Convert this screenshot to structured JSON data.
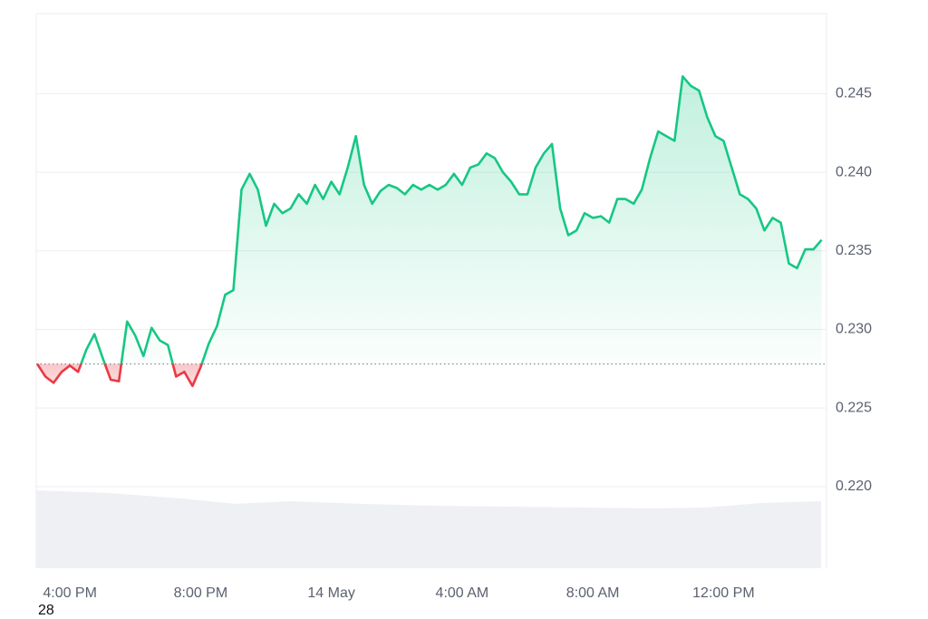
{
  "chart_data": {
    "type": "line",
    "x": [
      15,
      15.25,
      15.5,
      15.75,
      16,
      16.25,
      16.5,
      16.75,
      17,
      17.25,
      17.5,
      17.75,
      18,
      18.25,
      18.5,
      18.75,
      19,
      19.25,
      19.5,
      19.75,
      20,
      20.25,
      20.5,
      20.75,
      21,
      21.25,
      21.5,
      21.75,
      22,
      22.25,
      22.5,
      22.75,
      23,
      23.25,
      23.5,
      23.75,
      24,
      24.25,
      24.5,
      24.75,
      25,
      25.25,
      25.5,
      25.75,
      26,
      26.25,
      26.5,
      26.75,
      27,
      27.25,
      27.5,
      27.75,
      28,
      28.25,
      28.5,
      28.75,
      29,
      29.25,
      29.5,
      29.75,
      30,
      30.25,
      30.5,
      30.75,
      31,
      31.25,
      31.5,
      31.75,
      32,
      32.25,
      32.5,
      32.75,
      33,
      33.25,
      33.5,
      33.75,
      34,
      34.25,
      34.5,
      34.75,
      35,
      35.25,
      35.5,
      35.75,
      36,
      36.25,
      36.5,
      36.75,
      37,
      37.25,
      37.5,
      37.75,
      38,
      38.25,
      38.5,
      38.75,
      39
    ],
    "values": [
      0.2278,
      0.227,
      0.2266,
      0.2273,
      0.2277,
      0.2273,
      0.2287,
      0.2297,
      0.2282,
      0.2268,
      0.2267,
      0.2305,
      0.2296,
      0.2283,
      0.2301,
      0.2293,
      0.229,
      0.227,
      0.2273,
      0.2264,
      0.2276,
      0.2291,
      0.2302,
      0.2322,
      0.2325,
      0.2389,
      0.2399,
      0.2389,
      0.2366,
      0.238,
      0.2374,
      0.2377,
      0.2386,
      0.238,
      0.2392,
      0.2383,
      0.2394,
      0.2386,
      0.2403,
      0.2423,
      0.2392,
      0.238,
      0.2388,
      0.2392,
      0.239,
      0.2386,
      0.2392,
      0.2389,
      0.2392,
      0.2389,
      0.2392,
      0.2399,
      0.2392,
      0.2403,
      0.2405,
      0.2412,
      0.2409,
      0.24,
      0.2394,
      0.2386,
      0.2386,
      0.2403,
      0.2412,
      0.2418,
      0.2377,
      0.236,
      0.2363,
      0.2374,
      0.2371,
      0.2372,
      0.2368,
      0.2383,
      0.2383,
      0.238,
      0.2389,
      0.2409,
      0.2426,
      0.2423,
      0.242,
      0.2461,
      0.2455,
      0.2452,
      0.2435,
      0.2423,
      0.242,
      0.2403,
      0.2386,
      0.2383,
      0.2377,
      0.2363,
      0.2371,
      0.2368,
      0.2342,
      0.2339,
      0.2351,
      0.2351,
      0.2357
    ],
    "baseline": 0.2278,
    "up_color": "#16c784",
    "down_color": "#ea3943",
    "xlim": [
      14.97,
      39.15
    ],
    "xticks": [
      {
        "value": 16,
        "label": "4:00 PM"
      },
      {
        "value": 20,
        "label": "8:00 PM"
      },
      {
        "value": 24,
        "label": "14 May"
      },
      {
        "value": 28,
        "label": "4:00 AM"
      },
      {
        "value": 32,
        "label": "8:00 AM"
      },
      {
        "value": 36,
        "label": "12:00 PM"
      }
    ],
    "ylim": [
      0.2148,
      0.2501
    ],
    "yticks": [
      {
        "value": 0.22,
        "label": "0.220"
      },
      0.225,
      {
        "value": 0.23,
        "label": "0.230"
      },
      0.235,
      {
        "value": 0.24,
        "label": "0.240"
      },
      0.245
    ],
    "grid": true,
    "corner_text": "28"
  }
}
